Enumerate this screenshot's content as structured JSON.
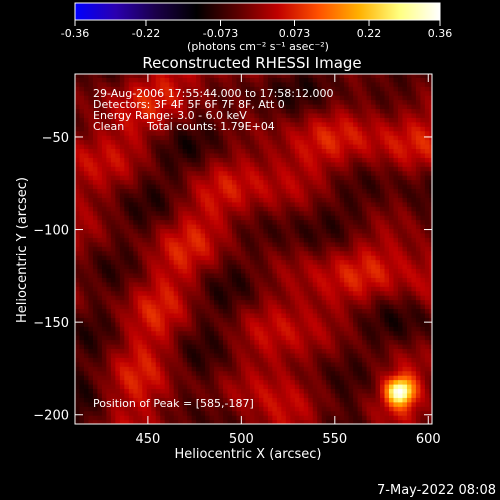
{
  "chart_data": {
    "type": "heatmap",
    "title": "Reconstructed RHESSI Image",
    "xlabel": "Heliocentric X (arcsec)",
    "ylabel": "Heliocentric Y (arcsec)",
    "xlim": [
      411,
      602
    ],
    "ylim": [
      -205,
      -16
    ],
    "x_ticks": [
      450,
      500,
      550,
      600
    ],
    "y_ticks": [
      -50,
      -100,
      -150,
      -200
    ],
    "colorbar": {
      "range": [
        -0.36,
        0.36
      ],
      "ticks": [
        "-0.36",
        "-0.22",
        "-0.073",
        "0.073",
        "0.22",
        "0.36"
      ],
      "unit_label": "(photons cm⁻² s⁻¹ asec⁻²)",
      "colormap": [
        "#0000ff",
        "#2a00b0",
        "#1a0048",
        "#000000",
        "#5a0000",
        "#c00000",
        "#ff5000",
        "#ffb000",
        "#ffff80",
        "#ffffff"
      ]
    },
    "annotations": {
      "time_range": "29-Aug-2006 17:55:44.000 to 17:58:12.000",
      "detectors": "Detectors: 3F 4F 5F 6F 7F 8F, Att 0",
      "energy": "Energy Range: 3.0 - 6.0 keV",
      "method": "Clean",
      "total_counts": "Total counts: 1.79E+04",
      "peak": "Position of Peak = [585,-187]"
    },
    "peak_position": [
      585,
      -187
    ]
  },
  "footer_date": "7-May-2022 08:08"
}
